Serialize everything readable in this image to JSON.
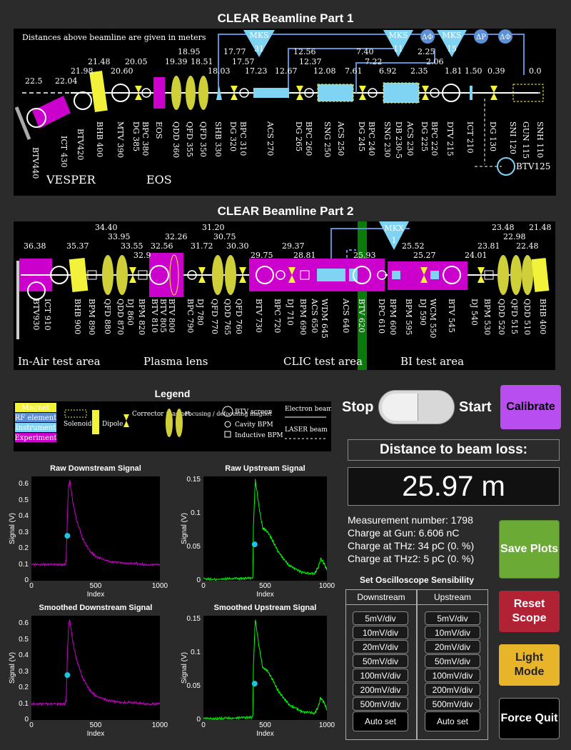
{
  "beamline1": {
    "title": "CLEAR Beamline Part 1",
    "note": "Distances above beamline are given in meters",
    "distances": [
      "22.5",
      "22.04",
      "21.98",
      "21.48",
      "20.60",
      "20.05",
      "19.39",
      "18.95",
      "18.51",
      "18.03",
      "17.77",
      "17.57",
      "17.23",
      "12.67",
      "12.56",
      "12.37",
      "12.08",
      "7.61",
      "7.40",
      "7.22",
      "6.92",
      "2.35",
      "2.25",
      "2.06",
      "1.81",
      "1.50",
      "0.39",
      "0.0"
    ],
    "elements": [
      "BTV440",
      "ICT 430",
      "BTV420",
      "BHB 400",
      "MTV 390",
      "DG 385",
      "BPC 380",
      "EOS",
      "QDD 360",
      "QFD 355",
      "QFD 350",
      "SHB 330",
      "DG 320",
      "BPC 310",
      "ACS 270",
      "DG 265",
      "BPC 260",
      "SNG 250",
      "ACS 250",
      "DG 245",
      "BPC 240",
      "SNG 230",
      "DB 230-5",
      "ACS 230",
      "DG 225",
      "BPC 220",
      "DTV 215",
      "ICT 210",
      "DG 130",
      "SNI 120",
      "GUN 115",
      "SNH 110"
    ],
    "diag_labels": [
      "MKS",
      "31",
      "MKS",
      "11",
      "MKS",
      "15",
      "ΔΦ",
      "ΔΦ",
      "ΔP",
      "ΔΦ"
    ],
    "areas": [
      "VESPER",
      "EOS"
    ],
    "btv125": "BTV125"
  },
  "beamline2": {
    "title": "CLEAR Beamline Part 2",
    "distances": [
      "36.38",
      "35.37",
      "34.40",
      "33.95",
      "33.55",
      "32.9",
      "32.56",
      "32.26",
      "31.72",
      "31.20",
      "30.75",
      "30.30",
      "29.75",
      "29.37",
      "28.81",
      "25.93",
      "25.52",
      "25.27",
      "24.01",
      "23.81",
      "23.48",
      "22.98",
      "22.48",
      "21.48"
    ],
    "elements": [
      "BTV930",
      "ICT 910",
      "BHB 900",
      "BPM 890",
      "QFD 880",
      "QDD 870",
      "DJ 860",
      "BPM 820",
      "BTV 810",
      "BTV 805",
      "BTV 800",
      "BPC 790",
      "DJ 780",
      "QFD 770",
      "QDD 765",
      "QFD 760",
      "BTV 730",
      "BPC 720",
      "DJ 710",
      "BPM 690",
      "ACS 650",
      "WDM 645",
      "ACS 640",
      "BTV 620",
      "DPC 610",
      "BPM 600",
      "BPM 595",
      "DJ 590",
      "WCM 550",
      "BTV 545",
      "DJ 540",
      "BPM 530",
      "QDD 520",
      "QFD 515",
      "QDD 510",
      "BHB 400"
    ],
    "mkx": [
      "MKX",
      "1"
    ],
    "areas": [
      "In-Air test area",
      "Plasma lens",
      "CLIC test area",
      "BI test area"
    ]
  },
  "legend": {
    "title": "Legend",
    "items": [
      "Magnet",
      "RF element",
      "Instrument",
      "Experiment",
      "Solenoid",
      "Dipole",
      "Corrector magnet",
      "Focusing / defocusing magnet",
      "BTV screen",
      "Cavity BPM",
      "Inductive BPM",
      "Electron beam",
      "LASER beam"
    ]
  },
  "toggle": {
    "stop": "Stop",
    "start": "Start"
  },
  "buttons": {
    "calibrate": "Calibrate",
    "save": "Save Plots",
    "reset": "Reset Scope",
    "light": "Light Mode",
    "quit": "Force Quit"
  },
  "distance": {
    "label": "Distance to beam loss:",
    "value": "25.97 m"
  },
  "info": {
    "measurement": "Measurement number: 1798",
    "gun": "Charge at Gun: 6.606 nC",
    "thz": "Charge at THz: 34 pC (0. %)",
    "thz2": "Charge at THz2: 5 pC (0. %)"
  },
  "osc": {
    "title": "Set Oscilloscope Sensibility",
    "down": "Downstream",
    "up": "Upstream",
    "options": [
      "5mV/div",
      "10mV/div",
      "20mV/div",
      "50mV/div",
      "100mV/div",
      "200mV/div",
      "500mV/div",
      "Auto set"
    ]
  },
  "colors": {
    "magenta": "#cc00cc",
    "green": "#00ff00",
    "yellow": "#f2f23a",
    "cyan": "#7fd4f4",
    "marker": "#19c6e3",
    "blue": "#5b8fd6"
  },
  "chart_data": [
    {
      "type": "line",
      "title": "Raw Downstream Signal",
      "xlabel": "Index",
      "ylabel": "Signal (V)",
      "xlim": [
        0,
        1000
      ],
      "ylim": [
        0,
        0.65
      ],
      "yticks": [
        "0",
        "0.1",
        "0.2",
        "0.3",
        "0.4",
        "0.5",
        "0.6"
      ],
      "xticks": [
        "0",
        "500",
        "1000"
      ],
      "series": [
        {
          "values_desc": "baseline",
          "x": [
            0,
            100,
            200,
            260,
            270,
            280,
            290,
            300,
            320,
            350,
            400,
            450,
            500,
            600,
            700,
            800,
            900,
            1000
          ],
          "y": [
            0.1,
            0.1,
            0.1,
            0.1,
            0.12,
            0.4,
            0.6,
            0.62,
            0.5,
            0.38,
            0.26,
            0.19,
            0.15,
            0.12,
            0.11,
            0.11,
            0.1,
            0.1
          ]
        }
      ],
      "marker": {
        "x": 280,
        "y": 0.28
      }
    },
    {
      "type": "line",
      "title": "Raw Upstream Signal",
      "xlabel": "Index",
      "ylabel": "Signal (V)",
      "xlim": [
        0,
        1000
      ],
      "ylim": [
        0,
        0.155
      ],
      "yticks": [
        "0",
        "0.05",
        "0.1",
        "0.15"
      ],
      "xticks": [
        "0",
        "500",
        "1000"
      ],
      "series": [
        {
          "x": [
            0,
            100,
            200,
            300,
            400,
            405,
            420,
            450,
            480,
            520,
            560,
            600,
            650,
            700,
            800,
            900,
            930,
            950,
            980,
            1000
          ],
          "y": [
            0.003,
            0.002,
            0.003,
            0.003,
            0.004,
            0.08,
            0.15,
            0.11,
            0.078,
            0.073,
            0.06,
            0.045,
            0.032,
            0.022,
            0.012,
            0.01,
            0.02,
            0.033,
            0.025,
            0.015
          ]
        }
      ],
      "marker": {
        "x": 415,
        "y": 0.054
      }
    },
    {
      "type": "line",
      "title": "Smoothed Downstream Signal",
      "xlabel": "Index",
      "ylabel": "Signal (V)",
      "xlim": [
        0,
        1000
      ],
      "ylim": [
        0,
        0.65
      ],
      "yticks": [
        "0",
        "0.1",
        "0.2",
        "0.3",
        "0.4",
        "0.5",
        "0.6"
      ],
      "xticks": [
        "0",
        "500",
        "1000"
      ],
      "series": [
        {
          "x": [
            0,
            100,
            200,
            260,
            270,
            280,
            290,
            300,
            320,
            350,
            400,
            450,
            500,
            600,
            700,
            800,
            900,
            1000
          ],
          "y": [
            0.1,
            0.1,
            0.1,
            0.1,
            0.12,
            0.4,
            0.6,
            0.62,
            0.5,
            0.38,
            0.26,
            0.19,
            0.15,
            0.12,
            0.11,
            0.11,
            0.1,
            0.1
          ]
        }
      ],
      "marker": {
        "x": 280,
        "y": 0.28
      }
    },
    {
      "type": "line",
      "title": "Smoothed Upstream Signal",
      "xlabel": "Index",
      "ylabel": "Signal (V)",
      "xlim": [
        0,
        1000
      ],
      "ylim": [
        0,
        0.155
      ],
      "yticks": [
        "0",
        "0.05",
        "0.1",
        "0.15"
      ],
      "xticks": [
        "0",
        "500",
        "1000"
      ],
      "series": [
        {
          "x": [
            0,
            100,
            200,
            300,
            400,
            405,
            420,
            450,
            480,
            520,
            560,
            600,
            650,
            700,
            800,
            900,
            930,
            950,
            980,
            1000
          ],
          "y": [
            0.003,
            0.002,
            0.003,
            0.003,
            0.004,
            0.08,
            0.15,
            0.11,
            0.078,
            0.073,
            0.06,
            0.045,
            0.032,
            0.022,
            0.012,
            0.01,
            0.02,
            0.033,
            0.025,
            0.015
          ]
        }
      ],
      "marker": {
        "x": 415,
        "y": 0.054
      }
    }
  ]
}
